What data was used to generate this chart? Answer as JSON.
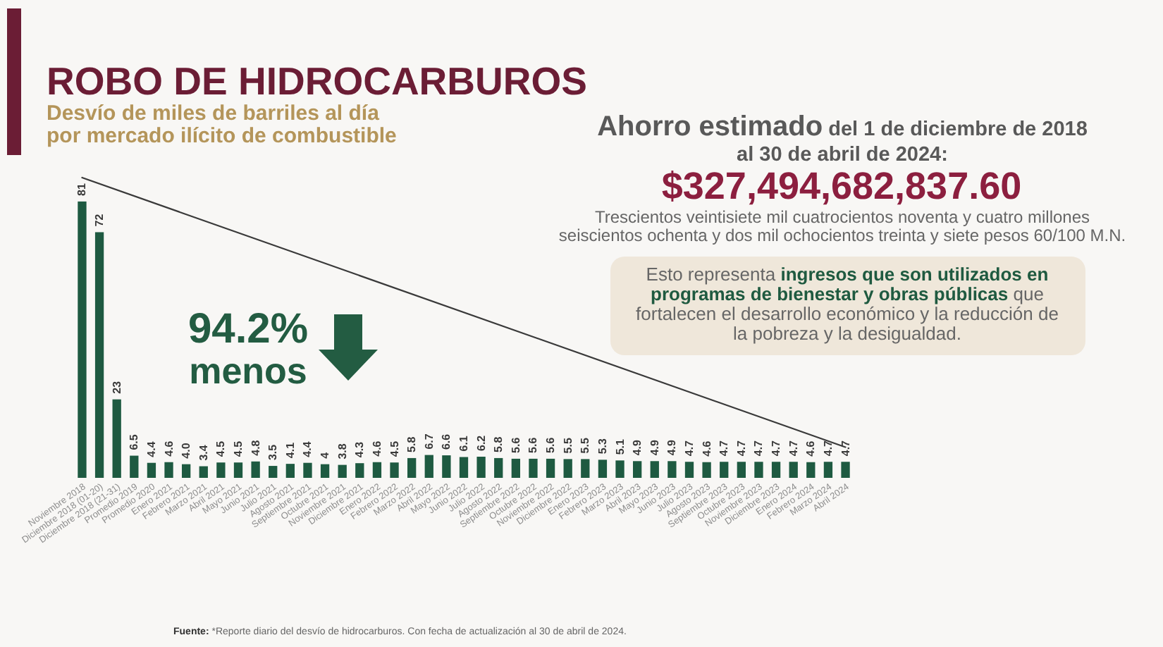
{
  "chart_data": {
    "type": "bar",
    "title": "ROBO DE HIDROCARBUROS",
    "subtitle": "Desvío de miles de barriles al día por mercado ilícito de combustible",
    "categories": [
      "Noviembre 2018",
      "Diciembre 2018 (01-20)",
      "Diciembre 2018 (21-31)",
      "Promedio 2019",
      "Promedio 2020",
      "Enero 2021",
      "Febrero 2021",
      "Marzo 2021",
      "Abril 2021",
      "Mayo 2021",
      "Junio 2021",
      "Julio 2021",
      "Agosto 2021",
      "Septiembre 2021",
      "Octubre 2021",
      "Noviembre 2021",
      "Diciembre 2021",
      "Enero 2022",
      "Febrero 2022",
      "Marzo 2022",
      "Abril 2022",
      "Mayo 2022",
      "Junio 2022",
      "Julio 2022",
      "Agosto 2022",
      "Septiembre 2022",
      "Octubre 2022",
      "Noviembre 2022",
      "Diciembre 2022",
      "Enero 2023",
      "Febrero 2023",
      "Marzo 2023",
      "Abril 2023",
      "Mayo 2023",
      "Junio 2023",
      "Julio 2023",
      "Agosto 2023",
      "Septiembre 2023",
      "Octubre 2023",
      "Noviembre 2023",
      "Diciembre 2023",
      "Enero 2024",
      "Febrero 2024",
      "Marzo 2024",
      "Abril 2024"
    ],
    "series": [
      {
        "color": "#1e5a41",
        "values": [
          81,
          72,
          23,
          6.5,
          4.4,
          4.6,
          4.0,
          3.4,
          4.5,
          4.5,
          4.8,
          3.5,
          4.1,
          4.4,
          4,
          3.8,
          4.3,
          4.6,
          4.5,
          5.8,
          6.7,
          6.6,
          6.1,
          6.2,
          5.8,
          5.6,
          5.6,
          5.6,
          5.5,
          5.5,
          5.3,
          5.1,
          4.9,
          4.9,
          4.9,
          4.7,
          4.6,
          4.7,
          4.7,
          4.7,
          4.7,
          4.7,
          4.6,
          4.7,
          4.7
        ],
        "value_labels": [
          "81",
          "72",
          "23",
          "6.5",
          "4.4",
          "4.6",
          "4.0",
          "3.4",
          "4.5",
          "4.5",
          "4.8",
          "3.5",
          "4.1",
          "4.4",
          "4",
          "3.8",
          "4.3",
          "4.6",
          "4.5",
          "5.8",
          "6.7",
          "6.6",
          "6.1",
          "6.2",
          "5.8",
          "5.6",
          "5.6",
          "5.6",
          "5.5",
          "5.5",
          "5.3",
          "5.1",
          "4.9",
          "4.9",
          "4.9",
          "4.7",
          "4.6",
          "4.7",
          "4.7",
          "4.7",
          "4.7",
          "4.7",
          "4.6",
          "4.7",
          "4.7"
        ]
      },
      {
        "type": "line",
        "color": "#3a3a3a",
        "x": [
          "Noviembre 2018",
          "Abril 2024"
        ],
        "values": [
          88,
          9
        ]
      }
    ],
    "annotations": [
      "94.2%",
      "menos",
      "Ahorro estimado",
      "del 1 de diciembre de 2018 al 30 de abril de 2024:",
      "$327,494,682,837.60",
      "Trescientos veintisiete mil cuatrocientos noventa y cuatro millones seiscientos ochenta y dos mil ochocientos treinta y siete pesos 60/100 M.N.",
      "Esto representa",
      "ingresos que son utilizados en programas de bienestar y obras públicas",
      "que fortalecen el desarrollo económico y la reducción de la pobreza y la desigualdad.",
      "Fuente:",
      "*Reporte diario del desvío de hidrocarburos. Con fecha de actualización al 30 de abril de 2024."
    ]
  }
}
